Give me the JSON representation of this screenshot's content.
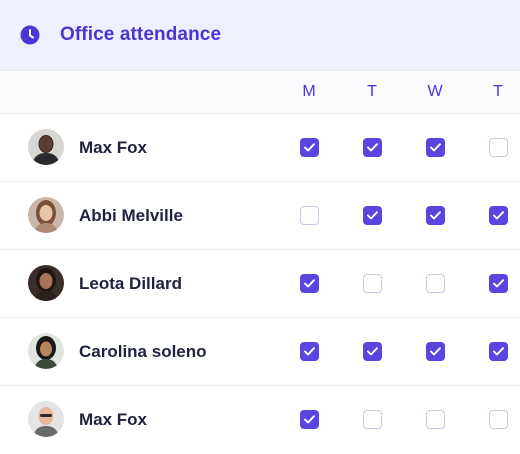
{
  "header": {
    "title": "Office attendance",
    "icon": "clock-icon"
  },
  "days": [
    "M",
    "T",
    "W",
    "T"
  ],
  "colors": {
    "accent": "#5b45e0",
    "title": "#4a35d6",
    "header_bg": "#eff0fd"
  },
  "people": [
    {
      "name": "Max Fox",
      "attendance": [
        true,
        true,
        true,
        false
      ]
    },
    {
      "name": "Abbi Melville",
      "attendance": [
        false,
        true,
        true,
        true
      ]
    },
    {
      "name": "Leota Dillard",
      "attendance": [
        true,
        false,
        false,
        true
      ]
    },
    {
      "name": "Carolina soleno",
      "attendance": [
        true,
        true,
        true,
        true
      ]
    },
    {
      "name": "Max Fox",
      "attendance": [
        true,
        false,
        false,
        false
      ]
    }
  ]
}
